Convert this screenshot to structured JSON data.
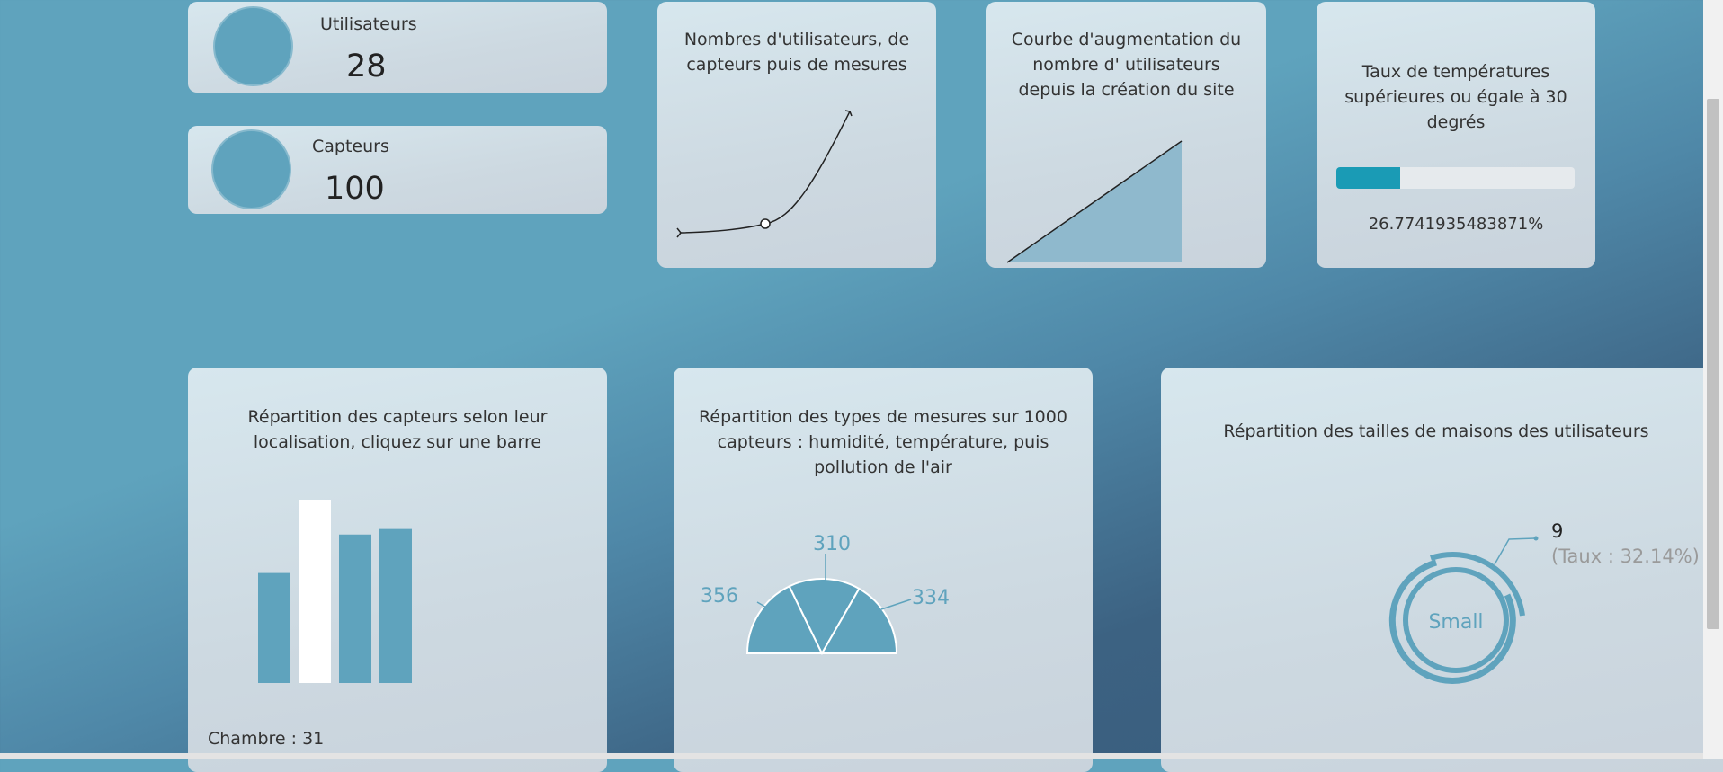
{
  "stats": {
    "users": {
      "label": "Utilisateurs",
      "value": "28"
    },
    "sensors": {
      "label": "Capteurs",
      "value": "100"
    }
  },
  "cards": {
    "growth_curve_title": "Nombres d'utilisateurs, de capteurs puis de mesures",
    "area_title": "Courbe d'augmentation du nombre d' utilisateurs depuis la création du site",
    "progress_title": "Taux de températures supérieures ou égale à 30 degrés",
    "progress_text": "26.7741935483871%",
    "progress_fraction": 0.2677,
    "bar_title": "Répartition des capteurs selon leur localisation, cliquez sur une barre",
    "bar_selected_text": "Chambre : 31",
    "gauge_title": "Répartition des types de mesures sur 1000 capteurs : humidité, température, puis pollution de l'air",
    "donut_title": "Répartition des tailles de maisons des utilisateurs",
    "donut_center": "Small",
    "donut_value": "9",
    "donut_rate": "(Taux : 32.14%)"
  },
  "chart_data": [
    {
      "type": "bar",
      "relative_heights": [
        0.6,
        1.0,
        0.81,
        0.84
      ],
      "selected_index": 1,
      "colors": {
        "bar": "#5fa3bd",
        "selected": "#ffffff"
      }
    },
    {
      "type": "pie",
      "values": [
        356,
        310,
        334
      ],
      "labels": [
        "356",
        "310",
        "334"
      ],
      "color": "#5fa3bd"
    }
  ],
  "colors": {
    "accent": "#5fa3bd",
    "progress": "#1a9bb5"
  }
}
